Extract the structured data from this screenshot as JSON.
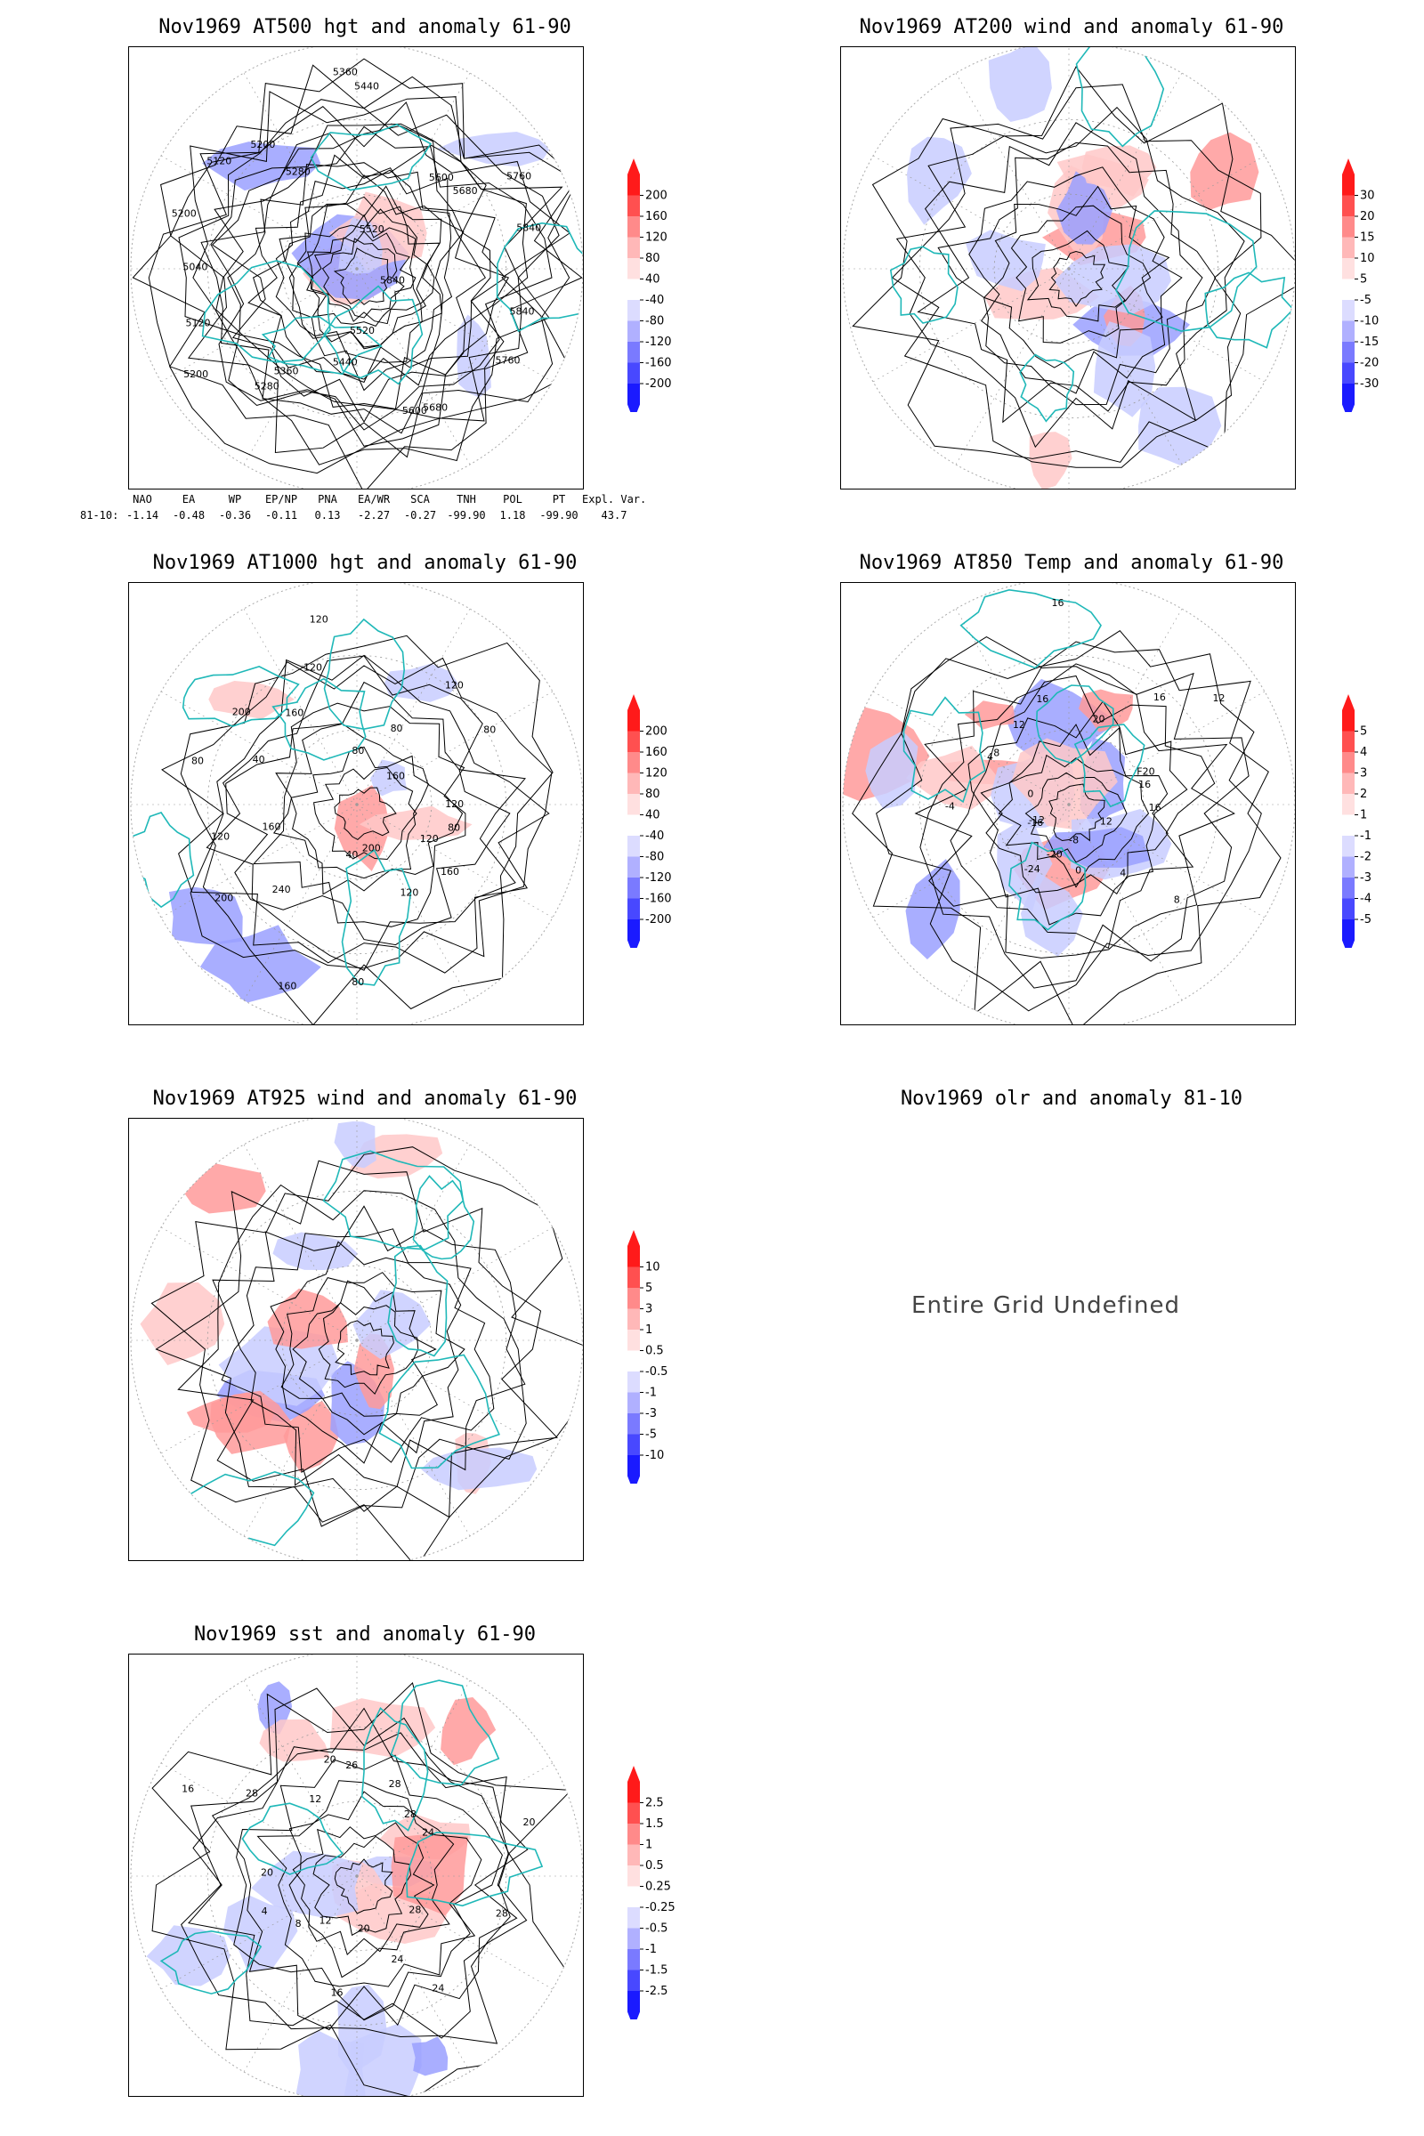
{
  "panels": [
    {
      "id": "p1",
      "title": "Nov1969 AT500 hgt and anomaly 61-90",
      "type": "height",
      "contour_labels": [
        "5840",
        "5840",
        "5760",
        "5680",
        "5600",
        "5520",
        "5440",
        "5360",
        "5280",
        "5200",
        "5120",
        "5040",
        "5200",
        "5120",
        "5200",
        "5280",
        "5360",
        "5440",
        "5520",
        "5600",
        "5680",
        "5760",
        "5840"
      ],
      "colorbar": [
        "200",
        "160",
        "120",
        "80",
        "40",
        "-40",
        "-80",
        "-120",
        "-160",
        "-200"
      ]
    },
    {
      "id": "p2",
      "title": "Nov1969 AT200 wind and anomaly 61-90",
      "type": "wind",
      "contour_labels": [],
      "colorbar": [
        "30",
        "20",
        "15",
        "10",
        "5",
        "-5",
        "-10",
        "-15",
        "-20",
        "-30"
      ]
    },
    {
      "id": "p3",
      "title": "Nov1969 AT1000 hgt and anomaly 61-90",
      "type": "height",
      "contour_labels": [
        "80",
        "120",
        "160",
        "120",
        "200",
        "80",
        "40",
        "160",
        "240",
        "200",
        "160",
        "120",
        "80",
        "40",
        "200",
        "160",
        "120",
        "120",
        "80",
        "80",
        "120",
        "160",
        "80",
        "120"
      ],
      "colorbar": [
        "200",
        "160",
        "120",
        "80",
        "40",
        "-40",
        "-80",
        "-120",
        "-160",
        "-200"
      ]
    },
    {
      "id": "p4",
      "title": "Nov1969 AT850 Temp and anomaly 61-90",
      "type": "temp",
      "contour_labels": [
        "16",
        "12",
        "8",
        "4",
        "0",
        "-8",
        "-20",
        "-24",
        "-16",
        "-12",
        "-4",
        "0",
        "4",
        "8",
        "12",
        "16",
        "16",
        "20",
        "16",
        "12",
        "F20",
        "16"
      ],
      "colorbar": [
        "5",
        "4",
        "3",
        "2",
        "1",
        "-1",
        "-2",
        "-3",
        "-4",
        "-5"
      ]
    },
    {
      "id": "p5",
      "title": "Nov1969 AT925 wind and anomaly 61-90",
      "type": "wind",
      "contour_labels": [],
      "colorbar": [
        "10",
        "5",
        "3",
        "1",
        "0.5",
        "-0.5",
        "-1",
        "-3",
        "-5",
        "-10"
      ]
    },
    {
      "id": "p6",
      "title": "Nov1969 olr and anomaly 81-10",
      "type": "undefined",
      "message": "Entire Grid Undefined"
    },
    {
      "id": "p7",
      "title": "Nov1969 sst and anomaly 61-90",
      "type": "sst",
      "contour_labels": [
        "28",
        "28",
        "24",
        "24",
        "20",
        "16",
        "12",
        "8",
        "4",
        "20",
        "16",
        "28",
        "12",
        "20",
        "26",
        "28",
        "28",
        "24",
        "20"
      ],
      "colorbar": [
        "2.5",
        "1.5",
        "1",
        "0.5",
        "0.25",
        "-0.25",
        "-0.5",
        "-1",
        "-1.5",
        "-2.5"
      ]
    }
  ],
  "teleconnection": {
    "headers": [
      "NAO",
      "EA",
      "WP",
      "EP/NP",
      "PNA",
      "EA/WR",
      "SCA",
      "TNH",
      "POL",
      "PT",
      "Expl. Var."
    ],
    "row_label": "81-10:",
    "values": [
      "-1.14",
      "-0.48",
      "-0.36",
      "-0.11",
      "0.13",
      "-2.27",
      "-0.27",
      "-99.90",
      "1.18",
      "-99.90",
      "43.7"
    ]
  },
  "colors": {
    "coast": "#1fb8b8",
    "warm": "#e53030",
    "cold": "#3340e8",
    "contour": "#000000"
  }
}
